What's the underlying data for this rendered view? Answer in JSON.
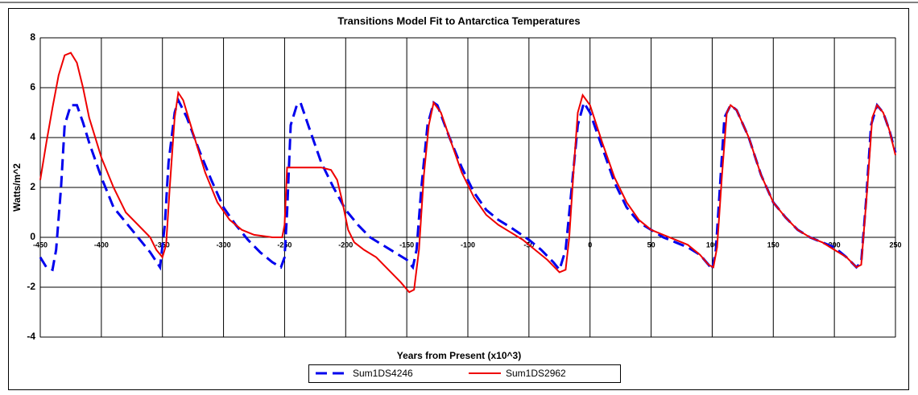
{
  "chart_data": {
    "type": "line",
    "title": "Transitions Model Fit to Antarctica Temperatures",
    "x_label": "Years from Present (x10^3)",
    "y_label": "Watts/m^2",
    "xlim": [
      -450,
      250
    ],
    "ylim": [
      -4,
      8
    ],
    "xticks": [
      -450,
      -400,
      -350,
      -300,
      -250,
      -200,
      -150,
      -100,
      -50,
      0,
      50,
      100,
      150,
      200,
      250
    ],
    "yticks": [
      -4,
      -2,
      0,
      2,
      4,
      6,
      8
    ],
    "grid": true,
    "legend": "bottom",
    "series": [
      {
        "name": "Sum1DS4246",
        "color": "#0000ee",
        "dash": true,
        "x": [
          -450,
          -445,
          -440,
          -437,
          -433,
          -430,
          -425,
          -420,
          -415,
          -410,
          -400,
          -390,
          -380,
          -370,
          -360,
          -352,
          -348,
          -345,
          -340,
          -337,
          -330,
          -320,
          -310,
          -300,
          -290,
          -280,
          -270,
          -260,
          -253,
          -250,
          -248,
          -245,
          -240,
          -237,
          -230,
          -220,
          -210,
          -200,
          -190,
          -180,
          -170,
          -160,
          -150,
          -145,
          -142,
          -138,
          -133,
          -128,
          -125,
          -115,
          -105,
          -95,
          -85,
          -75,
          -65,
          -50,
          -40,
          -30,
          -25,
          -20,
          -15,
          -10,
          -5,
          0,
          10,
          20,
          30,
          40,
          50,
          60,
          70,
          80,
          90,
          97,
          100,
          103,
          107,
          110,
          115,
          120,
          130,
          140,
          150,
          160,
          170,
          180,
          190,
          200,
          210,
          218,
          222,
          226,
          230,
          235,
          240,
          245,
          250
        ],
        "values": [
          -0.8,
          -1.2,
          -1.3,
          -0.5,
          2,
          4.5,
          5.3,
          5.3,
          4.6,
          3.8,
          2.4,
          1.2,
          0.6,
          0,
          -0.6,
          -1.2,
          0.5,
          3,
          5.0,
          5.5,
          4.8,
          3.5,
          2.3,
          1.2,
          0.5,
          -0.1,
          -0.6,
          -1.0,
          -1.2,
          -0.8,
          1,
          4.5,
          5.3,
          5.4,
          4.4,
          3.0,
          2.0,
          1.1,
          0.5,
          0,
          -0.3,
          -0.6,
          -0.9,
          -1.2,
          -0.5,
          2,
          4.5,
          5.4,
          5.3,
          4.0,
          2.8,
          1.8,
          1.1,
          0.7,
          0.4,
          -0.1,
          -0.5,
          -1.0,
          -1.3,
          -0.5,
          2,
          4.5,
          5.4,
          5.0,
          3.6,
          2.2,
          1.2,
          0.6,
          0.3,
          0,
          -0.2,
          -0.4,
          -0.7,
          -1.1,
          -1.3,
          -0.5,
          2.5,
          4.8,
          5.3,
          5.1,
          4.0,
          2.5,
          1.4,
          0.8,
          0.3,
          0,
          -0.2,
          -0.4,
          -0.8,
          -1.2,
          -1.0,
          1.5,
          4.5,
          5.3,
          5.0,
          4.3,
          3.4
        ]
      },
      {
        "name": "Sum1DS2962",
        "color": "#ee0000",
        "dash": false,
        "x": [
          -450,
          -445,
          -440,
          -435,
          -430,
          -425,
          -420,
          -415,
          -410,
          -400,
          -390,
          -380,
          -370,
          -360,
          -355,
          -350,
          -347,
          -344,
          -340,
          -337,
          -333,
          -325,
          -315,
          -305,
          -295,
          -285,
          -275,
          -260,
          -252,
          -250,
          -248,
          -240,
          -220,
          -212,
          -207,
          -203,
          -198,
          -193,
          -185,
          -175,
          -165,
          -155,
          -148,
          -144,
          -140,
          -136,
          -132,
          -128,
          -122,
          -115,
          -105,
          -95,
          -85,
          -75,
          -65,
          -55,
          -45,
          -35,
          -25,
          -20,
          -17,
          -13,
          -10,
          -6,
          0,
          10,
          20,
          30,
          40,
          50,
          60,
          70,
          80,
          90,
          97,
          101,
          104,
          108,
          112,
          115,
          120,
          130,
          140,
          150,
          160,
          170,
          180,
          190,
          200,
          210,
          218,
          222,
          227,
          231,
          235,
          240,
          245,
          250
        ],
        "values": [
          2.3,
          3.8,
          5.2,
          6.5,
          7.3,
          7.4,
          7.0,
          6.0,
          4.8,
          3.2,
          2.0,
          1.0,
          0.5,
          0,
          -0.5,
          -0.8,
          -0.3,
          2,
          4.8,
          5.8,
          5.5,
          4.2,
          2.6,
          1.4,
          0.7,
          0.3,
          0.1,
          0,
          0,
          0.5,
          2.8,
          2.8,
          2.8,
          2.7,
          2.3,
          1.5,
          0.3,
          -0.2,
          -0.5,
          -0.8,
          -1.3,
          -1.8,
          -2.2,
          -2.1,
          -0.5,
          2.5,
          4.5,
          5.4,
          5.0,
          4.0,
          2.6,
          1.6,
          0.9,
          0.5,
          0.2,
          -0.1,
          -0.5,
          -0.9,
          -1.4,
          -1.3,
          0,
          3,
          5,
          5.7,
          5.3,
          3.8,
          2.4,
          1.4,
          0.7,
          0.3,
          0.1,
          -0.1,
          -0.3,
          -0.7,
          -1.1,
          -1.2,
          -0.4,
          2.5,
          5,
          5.3,
          5.1,
          4.0,
          2.5,
          1.4,
          0.8,
          0.3,
          0,
          -0.2,
          -0.5,
          -0.8,
          -1.2,
          -1.1,
          2,
          4.8,
          5.3,
          5.0,
          4.3,
          3.3
        ]
      }
    ]
  }
}
